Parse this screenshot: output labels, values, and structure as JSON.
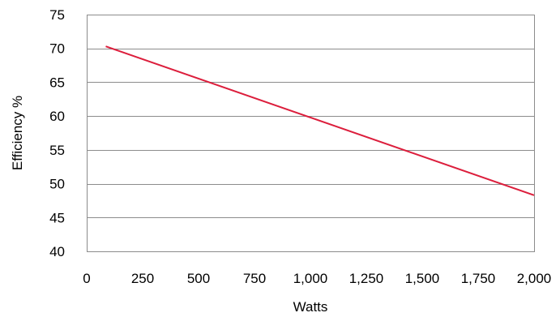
{
  "chart_data": {
    "type": "line",
    "title": "",
    "xlabel": "Watts",
    "ylabel": "Efficiency %",
    "xlim": [
      0,
      2000
    ],
    "ylim": [
      40,
      75
    ],
    "x_ticks": [
      0,
      250,
      500,
      750,
      1000,
      1250,
      1500,
      1750,
      2000
    ],
    "x_tick_labels": [
      "0",
      "250",
      "500",
      "750",
      "1,000",
      "1,250",
      "1,500",
      "1,750",
      "2,000"
    ],
    "y_ticks": [
      40,
      45,
      50,
      55,
      60,
      65,
      70,
      75
    ],
    "y_tick_labels": [
      "40",
      "45",
      "50",
      "55",
      "60",
      "65",
      "70",
      "75"
    ],
    "grid": "horizontal",
    "legend": "none",
    "series": [
      {
        "color": "#dc1e3c",
        "points": [
          {
            "x": 85,
            "y": 70.3
          },
          {
            "x": 2000,
            "y": 48.3
          }
        ]
      }
    ]
  }
}
